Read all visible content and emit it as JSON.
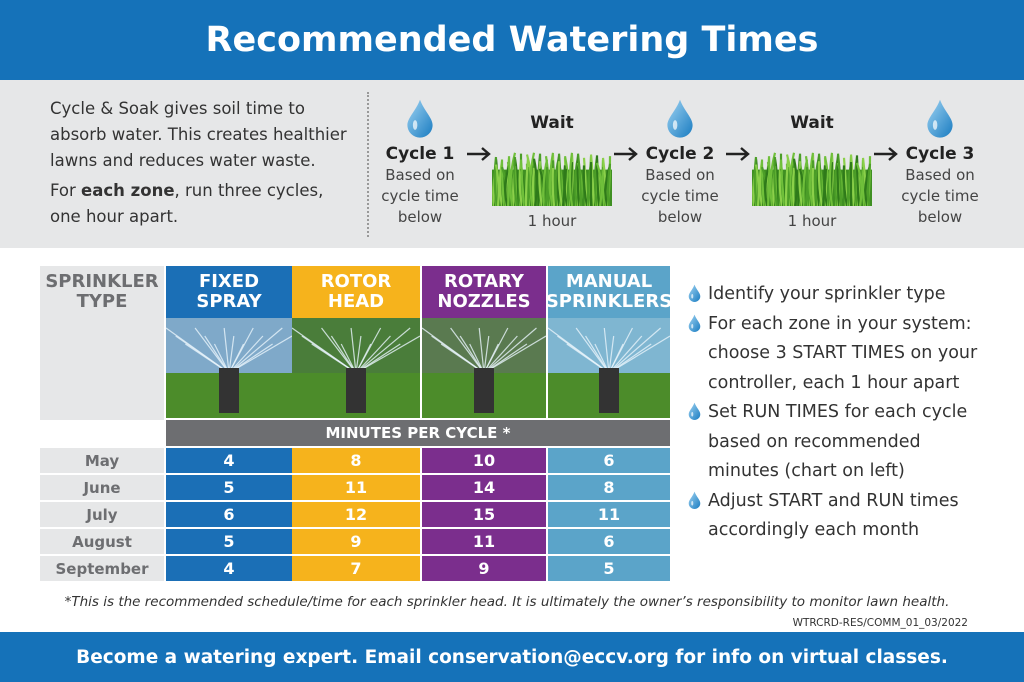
{
  "header": {
    "title": "Recommended Watering Times"
  },
  "intro": {
    "paragraph": "Cycle & Soak gives soil time to absorb water. This creates healthier lawns and reduces water waste.",
    "zone_before": "For ",
    "zone_bold": "each zone",
    "zone_after": ", run three cycles, one hour apart."
  },
  "steps": [
    {
      "label": "Cycle 1",
      "note": "Based on cycle time below"
    },
    {
      "label": "Wait",
      "note": "1 hour"
    },
    {
      "label": "Cycle 2",
      "note": "Based on cycle time below"
    },
    {
      "label": "Wait",
      "note": "1 hour"
    },
    {
      "label": "Cycle 3",
      "note": "Based on cycle time below"
    }
  ],
  "table": {
    "corner": "SPRINKLER TYPE",
    "columns": [
      "FIXED SPRAY",
      "ROTOR HEAD",
      "ROTARY NOZZLES",
      "MANUAL SPRINKLERS"
    ],
    "subheader": "MINUTES PER CYCLE *",
    "rows": [
      [
        "May",
        4,
        8,
        10,
        6
      ],
      [
        "June",
        5,
        11,
        14,
        8
      ],
      [
        "July",
        6,
        12,
        15,
        11
      ],
      [
        "August",
        5,
        9,
        11,
        6
      ],
      [
        "September",
        4,
        7,
        9,
        5
      ]
    ]
  },
  "tips": [
    "Identify your sprinkler type",
    "For each zone in your system: choose 3 START TIMES on your controller, each 1 hour apart",
    "Set RUN TIMES for each cycle based on recommended minutes (chart on left)",
    "Adjust START and RUN times accordingly each month"
  ],
  "footnote": "*This is the recommended schedule/time for each sprinkler head. It is ultimately the owner’s responsibility to monitor lawn health.",
  "code": "WTRCRD-RES/COMM_01_03/2022",
  "footer": "Become a watering expert. Email conservation@eccv.org for info on virtual classes."
}
